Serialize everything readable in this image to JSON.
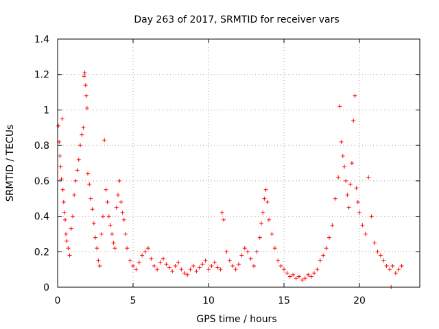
{
  "chart_data": {
    "type": "scatter",
    "title": "Day 263 of 2017, SRMTID for receiver vars",
    "xlabel": "GPS time / hours",
    "ylabel": "SRMTID / TECUs",
    "xlim": [
      0,
      24
    ],
    "ylim": [
      0,
      1.4
    ],
    "xticks": [
      0,
      5,
      10,
      15,
      20
    ],
    "yticks": [
      0,
      0.2,
      0.4,
      0.6,
      0.8,
      1,
      1.2,
      1.4
    ],
    "xtick_labels": [
      "0",
      "5",
      "10",
      "15",
      "20"
    ],
    "ytick_labels": [
      "0",
      "0.2",
      "0.4",
      "0.6",
      "0.8",
      "1",
      "1.2",
      "1.4"
    ],
    "grid": true,
    "marker": "+",
    "color": "#ff0000",
    "series": [
      {
        "name": "receiver vars",
        "x": [
          0.05,
          0.1,
          0.15,
          0.2,
          0.25,
          0.3,
          0.35,
          0.4,
          0.45,
          0.5,
          0.55,
          0.6,
          0.7,
          0.8,
          0.9,
          1.0,
          1.1,
          1.2,
          1.3,
          1.4,
          1.5,
          1.6,
          1.7,
          1.75,
          1.8,
          1.85,
          1.9,
          1.95,
          2.0,
          2.1,
          2.2,
          2.3,
          2.4,
          2.5,
          2.6,
          2.7,
          2.8,
          2.9,
          3.0,
          3.1,
          3.2,
          3.3,
          3.4,
          3.5,
          3.6,
          3.7,
          3.8,
          3.9,
          4.0,
          4.1,
          4.2,
          4.3,
          4.4,
          4.5,
          4.6,
          4.8,
          5.0,
          5.2,
          5.4,
          5.6,
          5.8,
          6.0,
          6.2,
          6.4,
          6.6,
          6.8,
          7.0,
          7.2,
          7.4,
          7.6,
          7.8,
          8.0,
          8.2,
          8.4,
          8.6,
          8.8,
          9.0,
          9.2,
          9.4,
          9.6,
          9.8,
          10.0,
          10.2,
          10.4,
          10.6,
          10.8,
          10.9,
          11.0,
          11.2,
          11.4,
          11.6,
          11.8,
          12.0,
          12.2,
          12.4,
          12.6,
          12.8,
          13.0,
          13.2,
          13.4,
          13.5,
          13.6,
          13.7,
          13.8,
          13.9,
          14.0,
          14.2,
          14.4,
          14.6,
          14.8,
          15.0,
          15.2,
          15.4,
          15.6,
          15.8,
          16.0,
          16.2,
          16.4,
          16.6,
          16.8,
          17.0,
          17.2,
          17.4,
          17.6,
          17.8,
          18.0,
          18.2,
          18.4,
          18.6,
          18.7,
          18.8,
          18.9,
          19.0,
          19.1,
          19.2,
          19.3,
          19.4,
          19.5,
          19.6,
          19.7,
          19.8,
          19.9,
          20.0,
          20.2,
          20.4,
          20.6,
          20.8,
          21.0,
          21.2,
          21.4,
          21.6,
          21.8,
          22.0,
          22.1,
          22.2,
          22.4,
          22.6,
          22.8
        ],
        "y": [
          0.91,
          0.82,
          0.74,
          0.68,
          0.61,
          0.95,
          0.55,
          0.48,
          0.42,
          0.38,
          0.3,
          0.26,
          0.22,
          0.18,
          0.33,
          0.4,
          0.52,
          0.6,
          0.66,
          0.72,
          0.8,
          0.86,
          0.9,
          1.19,
          1.21,
          1.14,
          1.08,
          1.01,
          0.64,
          0.58,
          0.5,
          0.44,
          0.36,
          0.28,
          0.22,
          0.15,
          0.12,
          0.3,
          0.4,
          0.83,
          0.55,
          0.48,
          0.4,
          0.35,
          0.3,
          0.25,
          0.22,
          0.45,
          0.52,
          0.6,
          0.48,
          0.42,
          0.38,
          0.3,
          0.22,
          0.15,
          0.12,
          0.1,
          0.14,
          0.18,
          0.2,
          0.22,
          0.16,
          0.12,
          0.1,
          0.14,
          0.16,
          0.13,
          0.11,
          0.09,
          0.12,
          0.14,
          0.1,
          0.08,
          0.07,
          0.1,
          0.12,
          0.09,
          0.11,
          0.13,
          0.15,
          0.1,
          0.12,
          0.14,
          0.11,
          0.1,
          0.42,
          0.38,
          0.2,
          0.15,
          0.12,
          0.1,
          0.13,
          0.18,
          0.22,
          0.2,
          0.16,
          0.12,
          0.2,
          0.28,
          0.36,
          0.42,
          0.5,
          0.55,
          0.48,
          0.38,
          0.3,
          0.22,
          0.15,
          0.12,
          0.1,
          0.08,
          0.06,
          0.07,
          0.05,
          0.06,
          0.04,
          0.05,
          0.07,
          0.06,
          0.08,
          0.1,
          0.15,
          0.18,
          0.22,
          0.28,
          0.35,
          0.5,
          0.62,
          1.02,
          0.82,
          0.74,
          0.68,
          0.6,
          0.52,
          0.45,
          0.58,
          0.7,
          0.94,
          1.08,
          0.56,
          0.48,
          0.42,
          0.35,
          0.3,
          0.62,
          0.4,
          0.25,
          0.2,
          0.18,
          0.15,
          0.12,
          0.1,
          0.0,
          0.12,
          0.08,
          0.1,
          0.12
        ]
      }
    ]
  }
}
